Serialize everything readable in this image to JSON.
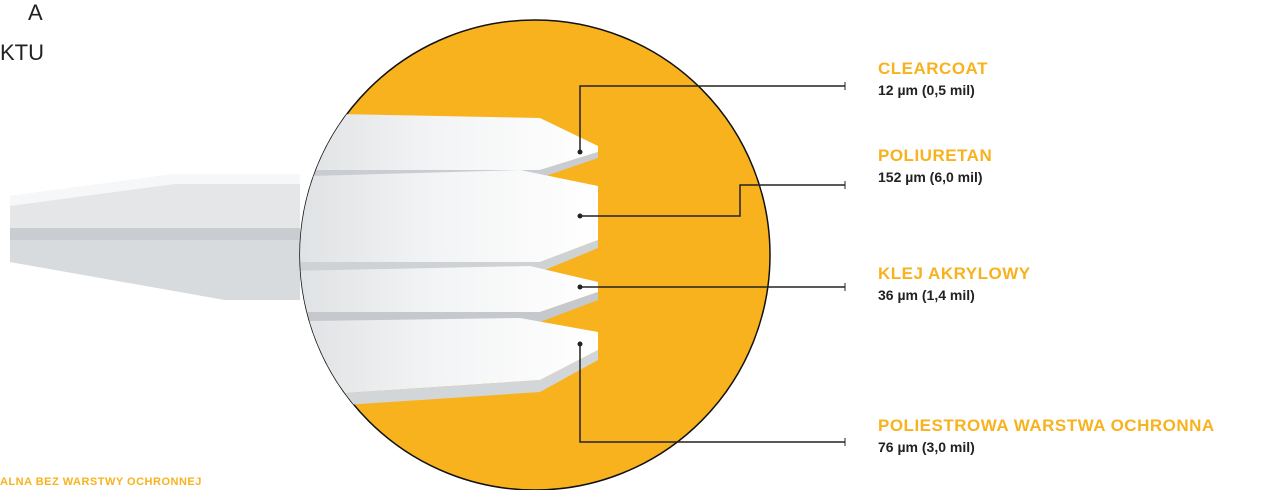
{
  "title_fragment": [
    "A",
    "KTU"
  ],
  "footer_note": "ALNA BEZ WARSTWY OCHRONNEJ",
  "colors": {
    "accent": "#F7B21E",
    "leader_line": "#222222",
    "label_text": "#222222",
    "layer_face": "#FFFFFF",
    "layer_side": "#E2E4E6"
  },
  "layers": [
    {
      "name": "CLEARCOAT",
      "thickness": "12 µm (0,5 mil)"
    },
    {
      "name": "POLIURETAN",
      "thickness": "152 µm (6,0 mil)"
    },
    {
      "name": "KLEJ AKRYLOWY",
      "thickness": "36 µm (1,4 mil)"
    },
    {
      "name": "POLIESTROWA WARSTWA OCHRONNA",
      "thickness": "76 µm (3,0 mil)"
    }
  ]
}
